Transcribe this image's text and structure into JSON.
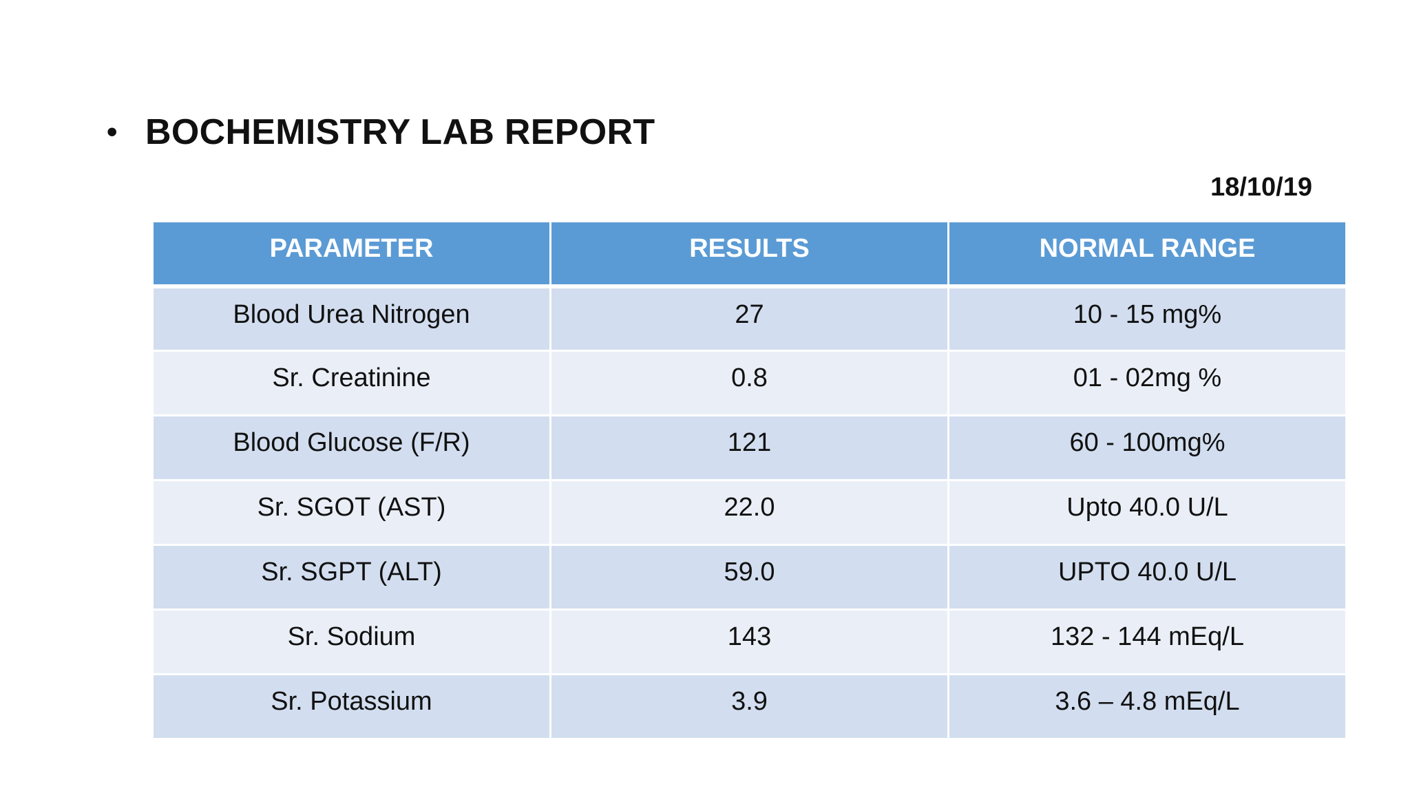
{
  "slide": {
    "bullet": "•",
    "title": "BOCHEMISTRY LAB REPORT",
    "date": "18/10/19"
  },
  "table": {
    "headers": [
      "PARAMETER",
      "RESULTS",
      "NORMAL RANGE"
    ],
    "rows": [
      [
        "Blood Urea Nitrogen",
        "27",
        "10 - 15 mg%"
      ],
      [
        "Sr. Creatinine",
        "0.8",
        "01 - 02mg %"
      ],
      [
        "Blood Glucose (F/R)",
        "121",
        "60 - 100mg%"
      ],
      [
        "Sr. SGOT (AST)",
        "22.0",
        "Upto 40.0 U/L"
      ],
      [
        "Sr. SGPT (ALT)",
        "59.0",
        "UPTO 40.0 U/L"
      ],
      [
        "Sr. Sodium",
        "143",
        "132 - 144 mEq/L"
      ],
      [
        "Sr. Potassium",
        "3.9",
        "3.6 – 4.8 mEq/L"
      ]
    ]
  },
  "colors": {
    "header_bg": "#5b9bd5",
    "row_odd_bg": "#d2deef",
    "row_even_bg": "#eaeff7"
  }
}
